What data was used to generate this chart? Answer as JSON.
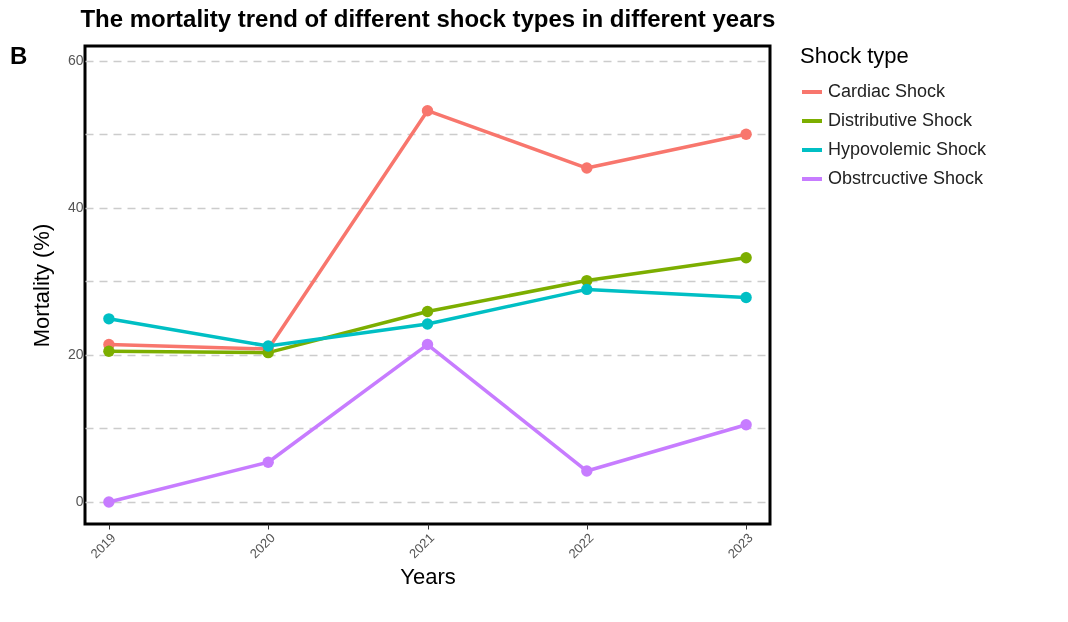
{
  "chart_data": {
    "type": "line",
    "title": "The mortality trend of different shock types in different years",
    "xlabel": "Years",
    "ylabel": "Mortality (%)",
    "legend_title": "Shock type",
    "annotations": [
      "B"
    ],
    "categories": [
      "2019",
      "2020",
      "2021",
      "2022",
      "2023"
    ],
    "series": [
      {
        "name": "Cardiac Shock",
        "color": "#f8766d",
        "values": [
          21.4,
          20.8,
          53.2,
          45.4,
          50.0
        ]
      },
      {
        "name": "Distributive Shock",
        "color": "#7cae00",
        "values": [
          20.5,
          20.3,
          25.9,
          30.1,
          33.2
        ]
      },
      {
        "name": "Hypovolemic Shock",
        "color": "#00bfc4",
        "values": [
          24.9,
          21.2,
          24.2,
          28.9,
          27.8
        ]
      },
      {
        "name": "Obstrcuctive Shock",
        "color": "#c77cff",
        "values": [
          0,
          5.4,
          21.4,
          4.2,
          10.5
        ]
      }
    ],
    "ylim": [
      -3,
      62
    ],
    "yticks": [
      0,
      {
        "value": 10,
        "label": null
      },
      20,
      {
        "value": 30,
        "label": null
      },
      40,
      {
        "value": 50,
        "label": null
      },
      60
    ],
    "grid": "y",
    "legend": "right",
    "marker": "circle",
    "line_style": "solid"
  }
}
